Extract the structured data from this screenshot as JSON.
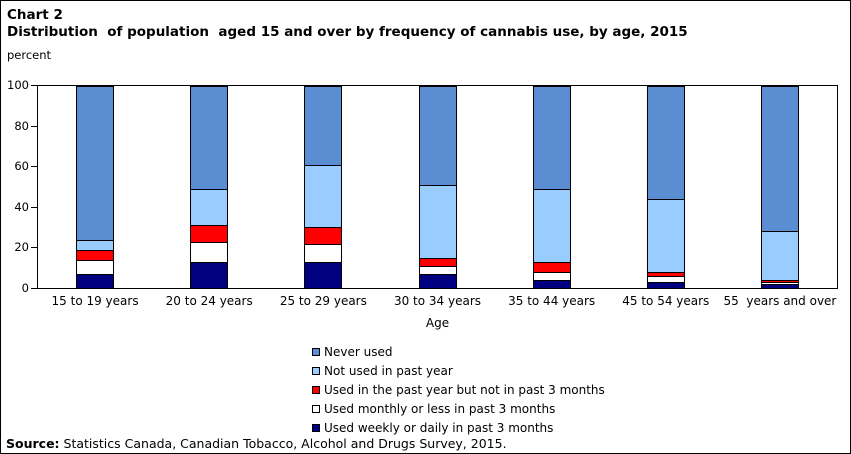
{
  "header": {
    "chart_label": "Chart 2",
    "title": "Distribution  of population  aged 15 and over by frequency of cannabis use, by age, 2015"
  },
  "y_axis": {
    "unit_label": "percent",
    "ticks": [
      0,
      20,
      40,
      60,
      80,
      100
    ]
  },
  "x_axis": {
    "label": "Age"
  },
  "source": {
    "prefix": "Source:",
    "text": " Statistics Canada, Canadian Tobacco, Alcohol and Drugs Survey, 2015."
  },
  "colors": {
    "never_used": "#5B8DD3",
    "not_used_past_year": "#99CCFF",
    "used_past_year_not_3_months": "#FF0000",
    "used_monthly_or_less": "#FFFFFF",
    "used_weekly_or_daily": "#000080",
    "axis": "#000000"
  },
  "chart_data": {
    "type": "bar",
    "stacked": true,
    "title": "Distribution of population aged 15 and over by frequency of cannabis use, by age, 2015",
    "xlabel": "Age",
    "ylabel": "percent",
    "ylim": [
      0,
      100
    ],
    "grid": false,
    "legend_position": "bottom",
    "categories": [
      "15 to 19 years",
      "20 to 24 years",
      "25 to 29 years",
      "30 to 34 years",
      "35 to 44 years",
      "45 to 54 years",
      "55  years and over"
    ],
    "series": [
      {
        "name": "Never used",
        "color": "#5B8DD3",
        "values": [
          76,
          51,
          39,
          49,
          51,
          56,
          72
        ]
      },
      {
        "name": "Not used in past year",
        "color": "#99CCFF",
        "values": [
          5,
          18,
          31,
          36,
          36,
          36,
          24
        ]
      },
      {
        "name": "Used in the past year but not in past 3 months",
        "color": "#FF0000",
        "values": [
          5,
          8,
          8,
          4,
          5,
          2,
          1
        ]
      },
      {
        "name": "Used monthly or less in past 3 months",
        "color": "#FFFFFF",
        "values": [
          7,
          10,
          9,
          4,
          4,
          3,
          1
        ]
      },
      {
        "name": "Used weekly or daily in past 3 months",
        "color": "#000080",
        "values": [
          7,
          13,
          13,
          7,
          4,
          3,
          2
        ]
      }
    ]
  }
}
